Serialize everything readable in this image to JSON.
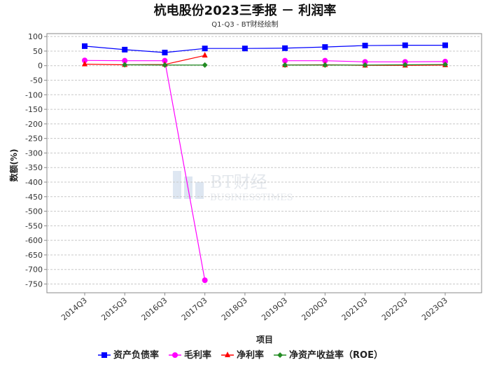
{
  "chart_data": {
    "type": "line",
    "title": "杭电股份2023三季报 － 利润率",
    "subtitle": "Q1-Q3 - BT财经绘制",
    "xlabel": "项目",
    "ylabel": "数额(%)",
    "categories": [
      "2014Q3",
      "2015Q3",
      "2016Q3",
      "2017Q3",
      "2018Q3",
      "2019Q3",
      "2020Q3",
      "2021Q3",
      "2022Q3",
      "2023Q3"
    ],
    "ylim": [
      -780,
      110
    ],
    "yticks": [
      100,
      50,
      0,
      -50,
      -100,
      -150,
      -200,
      -250,
      -300,
      -350,
      -400,
      -450,
      -500,
      -550,
      -600,
      -650,
      -700,
      -750
    ],
    "grid": true,
    "legend_position": "bottom",
    "watermark": "BT财经 BUSINESSTIMES",
    "series": [
      {
        "name": "资产负债率",
        "color": "#0000ff",
        "marker": "square",
        "values": [
          67,
          55,
          45,
          59,
          59,
          60,
          64,
          69,
          70,
          70
        ]
      },
      {
        "name": "毛利率",
        "color": "#ff00ff",
        "marker": "circle",
        "values": [
          18,
          17,
          17,
          -737,
          null,
          17,
          17,
          13,
          13,
          14
        ]
      },
      {
        "name": "净利率",
        "color": "#ff0000",
        "marker": "triangle",
        "values": [
          5,
          3,
          4,
          35,
          null,
          2,
          3,
          1,
          1,
          2
        ]
      },
      {
        "name": "净资产收益率（ROE）",
        "color": "#228b22",
        "marker": "diamond",
        "values": [
          null,
          3,
          2,
          2,
          null,
          2,
          2,
          2,
          3,
          4
        ]
      }
    ]
  }
}
